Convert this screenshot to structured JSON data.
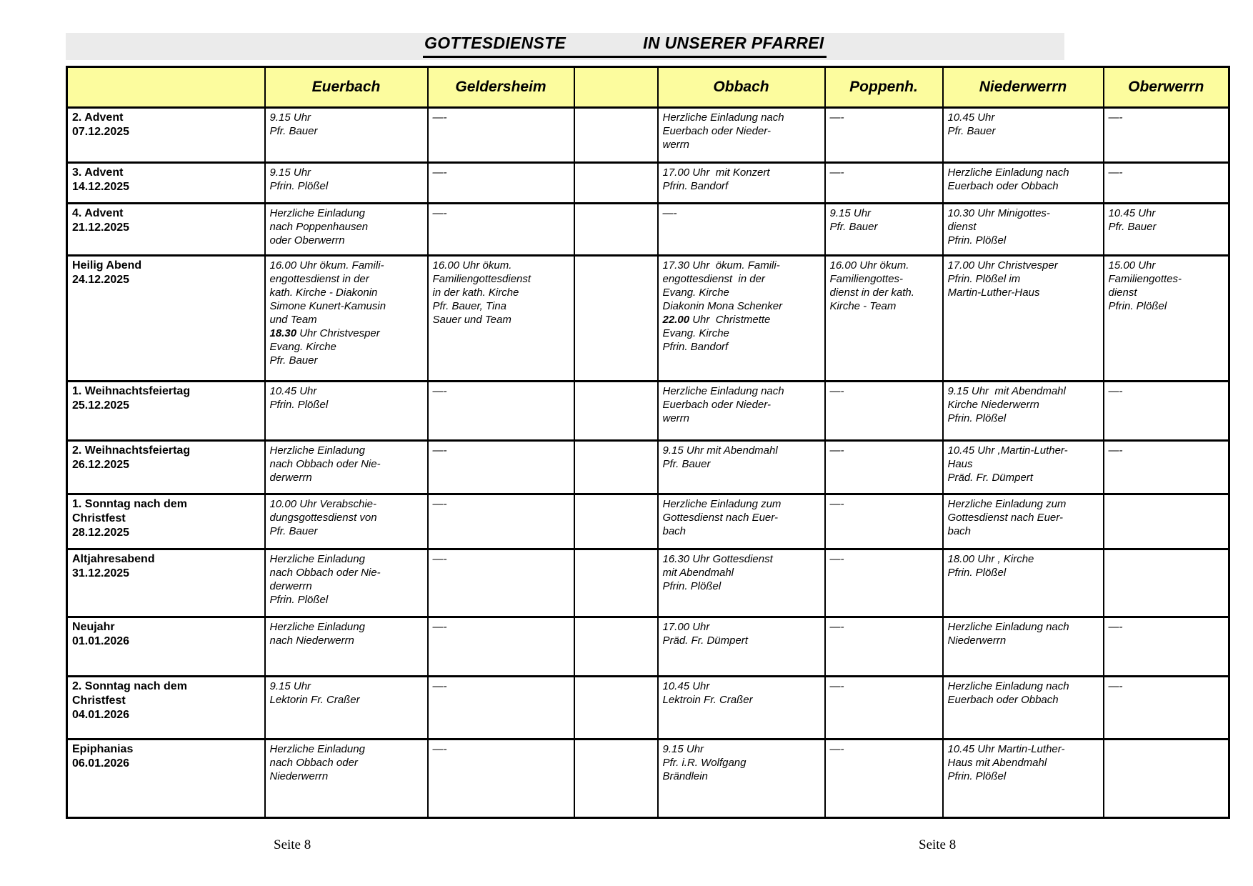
{
  "title": {
    "part1": "GOTTESDIENSTE",
    "part2": "IN UNSERER PFARREI"
  },
  "colors": {
    "header_bg": "#fcfc9e",
    "title_band_bg": "#ebebeb",
    "border": "#000000",
    "page_bg": "#ffffff",
    "text": "#000000"
  },
  "footer": {
    "left": "Seite 8",
    "right": "Seite 8"
  },
  "table": {
    "columns": [
      {
        "key": "date",
        "label": ""
      },
      {
        "key": "euerbach",
        "label": "Euerbach"
      },
      {
        "key": "geldersheim",
        "label": "Geldersheim"
      },
      {
        "key": "spacer",
        "label": ""
      },
      {
        "key": "obbach",
        "label": "Obbach"
      },
      {
        "key": "poppenh",
        "label": "Poppenh."
      },
      {
        "key": "niederwerrn",
        "label": "Niederwerrn"
      },
      {
        "key": "oberwerrn",
        "label": "Oberwerrn"
      }
    ],
    "rows": [
      {
        "date": [
          "2. Advent",
          "07.12.2025"
        ],
        "cells": {
          "euerbach": [
            "9.15 Uhr",
            "Pfr. Bauer"
          ],
          "geldersheim": [
            "—-"
          ],
          "spacer": [],
          "obbach": [
            "Herzliche Einladung nach",
            "Euerbach oder Nieder-",
            "werrn"
          ],
          "poppenh": [
            "—-"
          ],
          "niederwerrn": [
            "10.45 Uhr",
            "Pfr. Bauer"
          ],
          "oberwerrn": [
            "—-"
          ]
        }
      },
      {
        "date": [
          "3. Advent",
          "14.12.2025"
        ],
        "cells": {
          "euerbach": [
            "9.15 Uhr",
            "Pfrin. Plößel"
          ],
          "geldersheim": [
            "—-"
          ],
          "spacer": [],
          "obbach": [
            "17.00 Uhr  mit Konzert",
            "Pfrin. Bandorf"
          ],
          "poppenh": [
            "—-"
          ],
          "niederwerrn": [
            "Herzliche Einladung nach",
            "Euerbach oder Obbach"
          ],
          "oberwerrn": [
            "—-"
          ]
        }
      },
      {
        "date": [
          "4. Advent",
          "21.12.2025"
        ],
        "cells": {
          "euerbach": [
            "Herzliche Einladung",
            "nach Poppenhausen",
            "oder Oberwerrn"
          ],
          "geldersheim": [
            "—-"
          ],
          "spacer": [],
          "obbach": [
            "—-"
          ],
          "poppenh": [
            "9.15 Uhr",
            "Pfr. Bauer"
          ],
          "niederwerrn": [
            "10.30 Uhr Minigottes-",
            "dienst",
            "Pfrin. Plößel"
          ],
          "oberwerrn": [
            "10.45 Uhr",
            "Pfr. Bauer"
          ]
        }
      },
      {
        "date": [
          "Heilig Abend",
          "24.12.2025"
        ],
        "cells": {
          "euerbach": [
            "16.00 Uhr ökum. Famili-",
            "engottesdienst in der",
            "kath. Kirche - Diakonin",
            "Simone Kunert-Kamusin",
            "und Team",
            "**18.30** Uhr Christvesper",
            "Evang. Kirche",
            "Pfr. Bauer"
          ],
          "geldersheim": [
            "16.00 Uhr ökum.",
            "Familiengottesdienst",
            "in der kath. Kirche",
            "Pfr. Bauer, Tina",
            "Sauer und Team"
          ],
          "spacer": [],
          "obbach": [
            "17.30 Uhr  ökum. Famili-",
            "engottesdienst  in der",
            "Evang. Kirche",
            "Diakonin Mona Schenker",
            "**22.00** Uhr  Christmette",
            "Evang. Kirche",
            "Pfrin. Bandorf"
          ],
          "poppenh": [
            "16.00 Uhr ökum.",
            "Familiengottes-",
            "dienst in der kath.",
            "Kirche - Team"
          ],
          "niederwerrn": [
            "17.00 Uhr Christvesper",
            "Pfrin. Plößel im",
            "Martin-Luther-Haus"
          ],
          "oberwerrn": [
            "15.00 Uhr",
            "Familiengottes-",
            "dienst",
            "Pfrin. Plößel"
          ]
        }
      },
      {
        "date": [
          "1. Weihnachtsfeiertag",
          "25.12.2025"
        ],
        "cells": {
          "euerbach": [
            "10.45 Uhr",
            "Pfrin. Plößel"
          ],
          "geldersheim": [
            "—-"
          ],
          "spacer": [],
          "obbach": [
            "Herzliche Einladung nach",
            "Euerbach oder Nieder-",
            "werrn"
          ],
          "poppenh": [
            "—-"
          ],
          "niederwerrn": [
            "9.15 Uhr  mit Abendmahl",
            "Kirche Niederwerrn",
            "Pfrin. Plößel"
          ],
          "oberwerrn": [
            "—-"
          ]
        }
      },
      {
        "date": [
          "2. Weihnachtsfeiertag",
          "26.12.2025"
        ],
        "cells": {
          "euerbach": [
            "Herzliche Einladung",
            "nach Obbach oder Nie-",
            "derwerrn"
          ],
          "geldersheim": [
            "—-"
          ],
          "spacer": [],
          "obbach": [
            "9.15 Uhr mit Abendmahl",
            "Pfr. Bauer"
          ],
          "poppenh": [
            "—-"
          ],
          "niederwerrn": [
            "10.45 Uhr ,Martin-Luther-",
            "Haus",
            "Präd. Fr. Dümpert"
          ],
          "oberwerrn": [
            "—-"
          ]
        }
      },
      {
        "date": [
          "1. Sonntag nach dem",
          "Christfest",
          "28.12.2025"
        ],
        "cells": {
          "euerbach": [
            "10.00 Uhr Verabschie-",
            "dungsgottesdienst von",
            "Pfr. Bauer"
          ],
          "geldersheim": [
            "—-"
          ],
          "spacer": [],
          "obbach": [
            "Herzliche Einladung zum",
            "Gottesdienst nach Euer-",
            "bach"
          ],
          "poppenh": [
            "—-"
          ],
          "niederwerrn": [
            "Herzliche Einladung zum",
            "Gottesdienst nach Euer-",
            "bach"
          ],
          "oberwerrn": []
        }
      },
      {
        "date": [
          "Altjahresabend",
          "31.12.2025"
        ],
        "cells": {
          "euerbach": [
            "Herzliche Einladung",
            "nach Obbach oder Nie-",
            "derwerrn",
            "Pfrin. Plößel"
          ],
          "geldersheim": [
            "—-"
          ],
          "spacer": [],
          "obbach": [
            "16.30 Uhr Gottesdienst",
            "mit Abendmahl",
            "Pfrin. Plößel"
          ],
          "poppenh": [
            "—-"
          ],
          "niederwerrn": [
            "18.00 Uhr , Kirche",
            "Pfrin. Plößel"
          ],
          "oberwerrn": []
        }
      },
      {
        "date": [
          "Neujahr",
          "01.01.2026"
        ],
        "cells": {
          "euerbach": [
            "Herzliche Einladung",
            "nach Niederwerrn"
          ],
          "geldersheim": [
            "—-"
          ],
          "spacer": [],
          "obbach": [
            "17.00 Uhr",
            "Präd. Fr. Dümpert"
          ],
          "poppenh": [
            "—-"
          ],
          "niederwerrn": [
            "Herzliche Einladung nach",
            "Niederwerrn"
          ],
          "oberwerrn": [
            "—-"
          ]
        }
      },
      {
        "date": [
          "2. Sonntag nach dem",
          "Christfest",
          "04.01.2026"
        ],
        "cells": {
          "euerbach": [
            "9.15 Uhr",
            "Lektorin Fr. Craßer"
          ],
          "geldersheim": [
            "—-"
          ],
          "spacer": [],
          "obbach": [
            "10.45 Uhr",
            "Lektroin Fr. Craßer"
          ],
          "poppenh": [
            "—-"
          ],
          "niederwerrn": [
            "Herzliche Einladung nach",
            "Euerbach oder Obbach"
          ],
          "oberwerrn": [
            "—-"
          ]
        }
      },
      {
        "date": [
          "Epiphanias",
          "06.01.2026"
        ],
        "cells": {
          "euerbach": [
            "Herzliche Einladung",
            "nach Obbach oder",
            "Niederwerrn"
          ],
          "geldersheim": [
            "—-"
          ],
          "spacer": [],
          "obbach": [
            "9.15 Uhr",
            "Pfr. i.R. Wolfgang",
            "Brändlein"
          ],
          "poppenh": [
            "—-"
          ],
          "niederwerrn": [
            "10.45 Uhr Martin-Luther-",
            "Haus mit Abendmahl",
            "Pfrin. Plößel"
          ],
          "oberwerrn": []
        }
      }
    ]
  }
}
